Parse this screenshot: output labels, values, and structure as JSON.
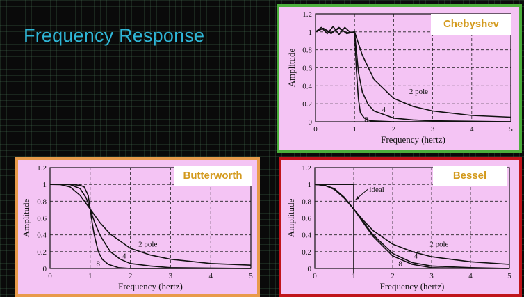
{
  "slide": {
    "title": "Frequency Response"
  },
  "colors": {
    "background": "#0a0a0a",
    "title": "#2fb6d6",
    "plot_bg": "#f4c4f4",
    "chebyshev_border": "#4caf3c",
    "butterworth_border": "#e89a4a",
    "bessel_border": "#c0141a",
    "tag_text": "#d39a1d"
  },
  "chart_data": [
    {
      "id": "chebyshev",
      "type": "line",
      "tag": "Chebyshev",
      "xlabel": "Frequency (hertz)",
      "ylabel": "Amplitude",
      "xlim": [
        0,
        5
      ],
      "ylim": [
        0,
        1.2
      ],
      "xticks": [
        "0",
        "1",
        "2",
        "3",
        "4",
        "5"
      ],
      "yticks": [
        "0",
        "0.2",
        "0.4",
        "0.6",
        "0.8",
        "1",
        "1.2"
      ],
      "grid": true,
      "series": [
        {
          "name": "2 pole",
          "x": [
            0,
            0.2,
            0.4,
            0.6,
            0.8,
            1.0,
            1.2,
            1.5,
            2.0,
            2.5,
            3.0,
            4.0,
            5.0
          ],
          "y": [
            1.0,
            1.04,
            0.99,
            1.04,
            0.99,
            1.0,
            0.74,
            0.47,
            0.26,
            0.17,
            0.12,
            0.07,
            0.05
          ]
        },
        {
          "name": "4",
          "x": [
            0,
            0.2,
            0.4,
            0.6,
            0.8,
            1.0,
            1.1,
            1.2,
            1.35,
            1.5,
            2.0,
            2.5,
            3.0,
            5.0
          ],
          "y": [
            1.0,
            1.04,
            0.98,
            1.05,
            0.98,
            1.0,
            0.55,
            0.33,
            0.19,
            0.12,
            0.04,
            0.02,
            0.01,
            0.0
          ]
        },
        {
          "name": "8",
          "x": [
            0,
            0.15,
            0.3,
            0.45,
            0.6,
            0.75,
            0.9,
            1.0,
            1.05,
            1.1,
            1.15,
            1.25,
            1.4,
            2.0,
            5.0
          ],
          "y": [
            1.0,
            1.05,
            0.98,
            1.06,
            0.97,
            1.05,
            0.99,
            1.0,
            0.55,
            0.25,
            0.1,
            0.04,
            0.01,
            0.0,
            0.0
          ]
        }
      ],
      "annotations": [
        {
          "text": "2 pole",
          "x": 2.4,
          "y": 0.31
        },
        {
          "text": "4",
          "x": 1.7,
          "y": 0.11
        },
        {
          "text": "8",
          "x": 1.25,
          "y": 0.0
        }
      ]
    },
    {
      "id": "butterworth",
      "type": "line",
      "tag": "Butterworth",
      "xlabel": "Frequency (hertz)",
      "ylabel": "Amplitude",
      "xlim": [
        0,
        5
      ],
      "ylim": [
        0,
        1.2
      ],
      "xticks": [
        "0",
        "1",
        "2",
        "3",
        "4",
        "5"
      ],
      "yticks": [
        "0",
        "0.2",
        "0.4",
        "0.6",
        "0.8",
        "1",
        "1.2"
      ],
      "grid": true,
      "series": [
        {
          "name": "2 pole",
          "x": [
            0,
            0.25,
            0.5,
            0.75,
            1.0,
            1.25,
            1.5,
            2.0,
            2.5,
            3.0,
            4.0,
            5.0
          ],
          "y": [
            1.0,
            0.998,
            0.97,
            0.87,
            0.707,
            0.54,
            0.41,
            0.24,
            0.16,
            0.11,
            0.06,
            0.04
          ]
        },
        {
          "name": "4",
          "x": [
            0,
            0.25,
            0.5,
            0.75,
            0.9,
            1.0,
            1.1,
            1.25,
            1.5,
            1.75,
            2.0,
            2.5,
            3.0,
            5.0
          ],
          "y": [
            1.0,
            1.0,
            0.998,
            0.95,
            0.84,
            0.707,
            0.56,
            0.39,
            0.2,
            0.11,
            0.06,
            0.03,
            0.01,
            0.0
          ]
        },
        {
          "name": "8",
          "x": [
            0,
            0.5,
            0.75,
            0.85,
            0.95,
            1.0,
            1.05,
            1.1,
            1.2,
            1.3,
            1.45,
            1.7,
            2.0,
            5.0
          ],
          "y": [
            1.0,
            1.0,
            0.99,
            0.97,
            0.87,
            0.707,
            0.54,
            0.4,
            0.2,
            0.11,
            0.05,
            0.01,
            0.0,
            0.0
          ]
        }
      ],
      "annotations": [
        {
          "text": "2 pole",
          "x": 2.2,
          "y": 0.26
        },
        {
          "text": "4",
          "x": 1.8,
          "y": 0.12
        },
        {
          "text": "8",
          "x": 1.15,
          "y": 0.03
        }
      ]
    },
    {
      "id": "bessel",
      "type": "line",
      "tag": "Bessel",
      "xlabel": "Frequency (hertz)",
      "ylabel": "Amplitude",
      "xlim": [
        0,
        5
      ],
      "ylim": [
        0,
        1.2
      ],
      "xticks": [
        "0",
        "1",
        "2",
        "3",
        "4",
        "5"
      ],
      "yticks": [
        "0",
        "0.2",
        "0.4",
        "0.6",
        "0.8",
        "1",
        "1.2"
      ],
      "grid": true,
      "series": [
        {
          "name": "2 pole",
          "x": [
            0,
            0.25,
            0.5,
            0.75,
            1.0,
            1.25,
            1.5,
            2.0,
            2.5,
            3.0,
            4.0,
            5.0
          ],
          "y": [
            1.0,
            0.99,
            0.94,
            0.84,
            0.707,
            0.57,
            0.45,
            0.29,
            0.2,
            0.14,
            0.08,
            0.05
          ]
        },
        {
          "name": "4",
          "x": [
            0,
            0.25,
            0.5,
            0.75,
            1.0,
            1.25,
            1.5,
            2.0,
            2.5,
            3.0,
            4.0,
            5.0
          ],
          "y": [
            1.0,
            0.99,
            0.95,
            0.85,
            0.707,
            0.55,
            0.4,
            0.18,
            0.07,
            0.03,
            0.01,
            0.0
          ]
        },
        {
          "name": "8",
          "x": [
            0,
            0.25,
            0.5,
            0.75,
            1.0,
            1.25,
            1.5,
            2.0,
            2.5,
            3.0,
            4.0,
            5.0
          ],
          "y": [
            1.0,
            0.99,
            0.95,
            0.85,
            0.707,
            0.54,
            0.38,
            0.15,
            0.05,
            0.01,
            0.0,
            0.0
          ]
        },
        {
          "name": "ideal",
          "x": [
            0,
            1.0,
            1.0,
            1.0
          ],
          "y": [
            1.0,
            1.0,
            0.0,
            -0.05
          ]
        }
      ],
      "annotations": [
        {
          "text": "2 pole",
          "x": 2.95,
          "y": 0.26
        },
        {
          "text": "4",
          "x": 2.55,
          "y": 0.12
        },
        {
          "text": "8",
          "x": 2.15,
          "y": 0.03
        },
        {
          "text": "ideal",
          "x": 1.4,
          "y": 0.91
        }
      ]
    }
  ]
}
